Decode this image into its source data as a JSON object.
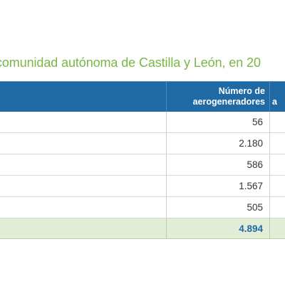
{
  "title": "comunidad autónoma de Castilla y León, en 20",
  "table": {
    "headers": {
      "col1_line1": "Número de",
      "col1_line2": "aerogeneradores",
      "col2_fragment": "a"
    },
    "rows": [
      {
        "value": "56"
      },
      {
        "value": "2.180"
      },
      {
        "value": "586"
      },
      {
        "value": "1.567"
      },
      {
        "value": "505"
      }
    ],
    "total": {
      "value": "4.894"
    }
  },
  "colors": {
    "title": "#7ab648",
    "header_bg": "#1f6aa5",
    "total_bg": "#e3eed8",
    "total_text": "#1f6aa5"
  }
}
